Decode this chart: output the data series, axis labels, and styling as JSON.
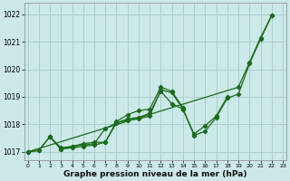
{
  "xlabel": "Graphe pression niveau de la mer (hPa)",
  "bg_color": "#cce8e8",
  "grid_color": "#aacfcf",
  "line_color": "#1a6b1a",
  "x_ticks": [
    0,
    1,
    2,
    3,
    4,
    5,
    6,
    7,
    8,
    9,
    10,
    11,
    12,
    13,
    14,
    15,
    16,
    17,
    18,
    19,
    20,
    21,
    22,
    23
  ],
  "y_ticks": [
    1017,
    1018,
    1019,
    1020,
    1021,
    1022
  ],
  "ylim": [
    1016.7,
    1022.4
  ],
  "xlim": [
    -0.3,
    23.3
  ],
  "series": [
    [
      1017.0,
      1017.05,
      1017.55,
      1017.1,
      1017.15,
      1017.2,
      1017.25,
      1017.35,
      1018.05,
      1018.15,
      1018.2,
      1018.3,
      1019.25,
      1019.15,
      1018.55,
      1017.6,
      1017.75,
      1018.25,
      1018.95,
      1019.1,
      1020.2,
      1021.1,
      1021.95,
      null
    ],
    [
      1017.0,
      1017.05,
      1017.55,
      1017.15,
      1017.2,
      1017.25,
      1017.3,
      1017.85,
      1018.05,
      1018.2,
      1018.25,
      1018.4,
      1019.2,
      1018.75,
      1018.55,
      1017.65,
      1017.95,
      1018.3,
      1019.0,
      null,
      null,
      null,
      null,
      null
    ],
    [
      null,
      null,
      1017.55,
      1017.1,
      1017.2,
      1017.3,
      1017.35,
      1017.35,
      1018.1,
      1018.35,
      1018.5,
      1018.55,
      1019.35,
      1019.2,
      1018.6,
      null,
      null,
      null,
      null,
      null,
      null,
      null,
      null,
      null
    ],
    [
      1017.0,
      null,
      null,
      null,
      null,
      null,
      null,
      null,
      null,
      null,
      null,
      null,
      null,
      null,
      null,
      null,
      null,
      null,
      null,
      1019.35,
      1020.25,
      1021.15,
      1021.95,
      null
    ]
  ]
}
